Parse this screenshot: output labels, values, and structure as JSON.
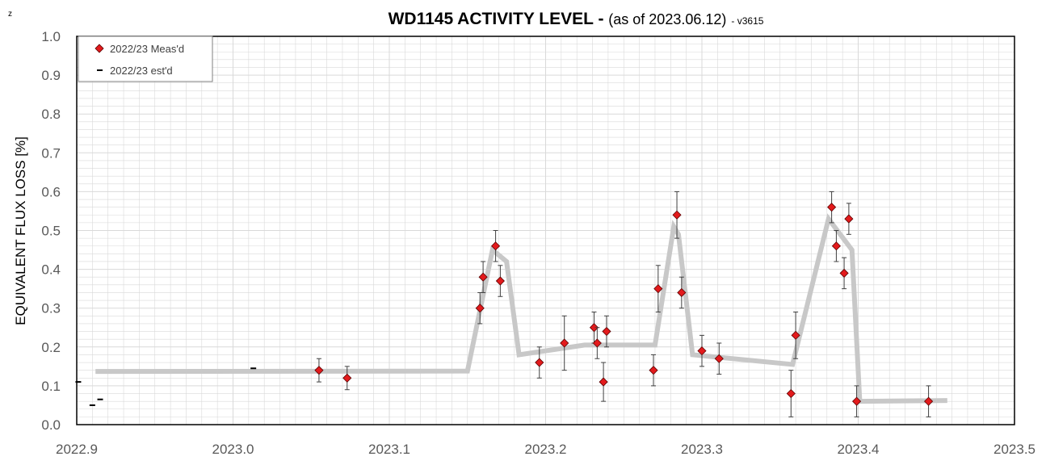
{
  "chart_data": {
    "type": "scatter",
    "title": "WD1145 ACTIVITY LEVEL",
    "title_dash": " - ",
    "subtitle": "(as of 2023.06.12)",
    "version": "- v3615",
    "corner_mark": "z",
    "xlabel": "",
    "ylabel": "EQUIVALENT FLUX LOSS [%]",
    "xlim": [
      2022.9,
      2023.5
    ],
    "ylim": [
      0.0,
      1.0
    ],
    "x_ticks": [
      "2022.9",
      "2023.0",
      "2023.1",
      "2023.2",
      "2023.3",
      "2023.4",
      "2023.5"
    ],
    "x_tick_values": [
      2022.9,
      2023.0,
      2023.1,
      2023.2,
      2023.3,
      2023.4,
      2023.5
    ],
    "y_ticks": [
      "0.0",
      "0.1",
      "0.2",
      "0.3",
      "0.4",
      "0.5",
      "0.6",
      "0.7",
      "0.8",
      "0.9",
      "1.0"
    ],
    "y_tick_values": [
      0.0,
      0.1,
      0.2,
      0.3,
      0.4,
      0.5,
      0.6,
      0.7,
      0.8,
      0.9,
      1.0
    ],
    "grid": true,
    "legend_position": "top-left",
    "colors": {
      "marker_fill": "#e31a1c",
      "marker_edge": "#5a0000",
      "trend": "#c8c8c8",
      "grid": "#d9d9d9",
      "errorbar": "#404040"
    },
    "series": [
      {
        "name": "2022/23 Meas'd",
        "marker": "diamond",
        "points": [
          {
            "x": 2023.055,
            "y": 0.14,
            "err": 0.03
          },
          {
            "x": 2023.073,
            "y": 0.12,
            "err": 0.03
          },
          {
            "x": 2023.158,
            "y": 0.3,
            "err": 0.04
          },
          {
            "x": 2023.16,
            "y": 0.38,
            "err": 0.04
          },
          {
            "x": 2023.168,
            "y": 0.46,
            "err": 0.04
          },
          {
            "x": 2023.171,
            "y": 0.37,
            "err": 0.04
          },
          {
            "x": 2023.196,
            "y": 0.16,
            "err": 0.04
          },
          {
            "x": 2023.212,
            "y": 0.21,
            "err": 0.07
          },
          {
            "x": 2023.231,
            "y": 0.25,
            "err": 0.04
          },
          {
            "x": 2023.233,
            "y": 0.21,
            "err": 0.04
          },
          {
            "x": 2023.237,
            "y": 0.11,
            "err": 0.05
          },
          {
            "x": 2023.239,
            "y": 0.24,
            "err": 0.04
          },
          {
            "x": 2023.269,
            "y": 0.14,
            "err": 0.04
          },
          {
            "x": 2023.272,
            "y": 0.35,
            "err": 0.06
          },
          {
            "x": 2023.284,
            "y": 0.54,
            "err": 0.06
          },
          {
            "x": 2023.287,
            "y": 0.34,
            "err": 0.04
          },
          {
            "x": 2023.3,
            "y": 0.19,
            "err": 0.04
          },
          {
            "x": 2023.311,
            "y": 0.17,
            "err": 0.04
          },
          {
            "x": 2023.357,
            "y": 0.08,
            "err": 0.06
          },
          {
            "x": 2023.36,
            "y": 0.23,
            "err": 0.06
          },
          {
            "x": 2023.383,
            "y": 0.56,
            "err": 0.04
          },
          {
            "x": 2023.386,
            "y": 0.46,
            "err": 0.04
          },
          {
            "x": 2023.391,
            "y": 0.39,
            "err": 0.04
          },
          {
            "x": 2023.394,
            "y": 0.53,
            "err": 0.04
          },
          {
            "x": 2023.399,
            "y": 0.06,
            "err": 0.04
          },
          {
            "x": 2023.445,
            "y": 0.06,
            "err": 0.04
          }
        ]
      },
      {
        "name": "2022/23 est'd",
        "marker": "dash",
        "points": [
          {
            "x": 2022.901,
            "y": 0.11
          },
          {
            "x": 2022.91,
            "y": 0.05
          },
          {
            "x": 2022.915,
            "y": 0.065
          },
          {
            "x": 2023.013,
            "y": 0.145
          }
        ]
      }
    ],
    "trend_line": {
      "x": [
        2022.912,
        2023.15,
        2023.166,
        2023.175,
        2023.183,
        2023.225,
        2023.27,
        2023.282,
        2023.285,
        2023.294,
        2023.358,
        2023.381,
        2023.396,
        2023.401,
        2023.457
      ],
      "y": [
        0.137,
        0.138,
        0.45,
        0.42,
        0.18,
        0.205,
        0.205,
        0.51,
        0.49,
        0.18,
        0.155,
        0.53,
        0.45,
        0.06,
        0.062
      ]
    }
  }
}
